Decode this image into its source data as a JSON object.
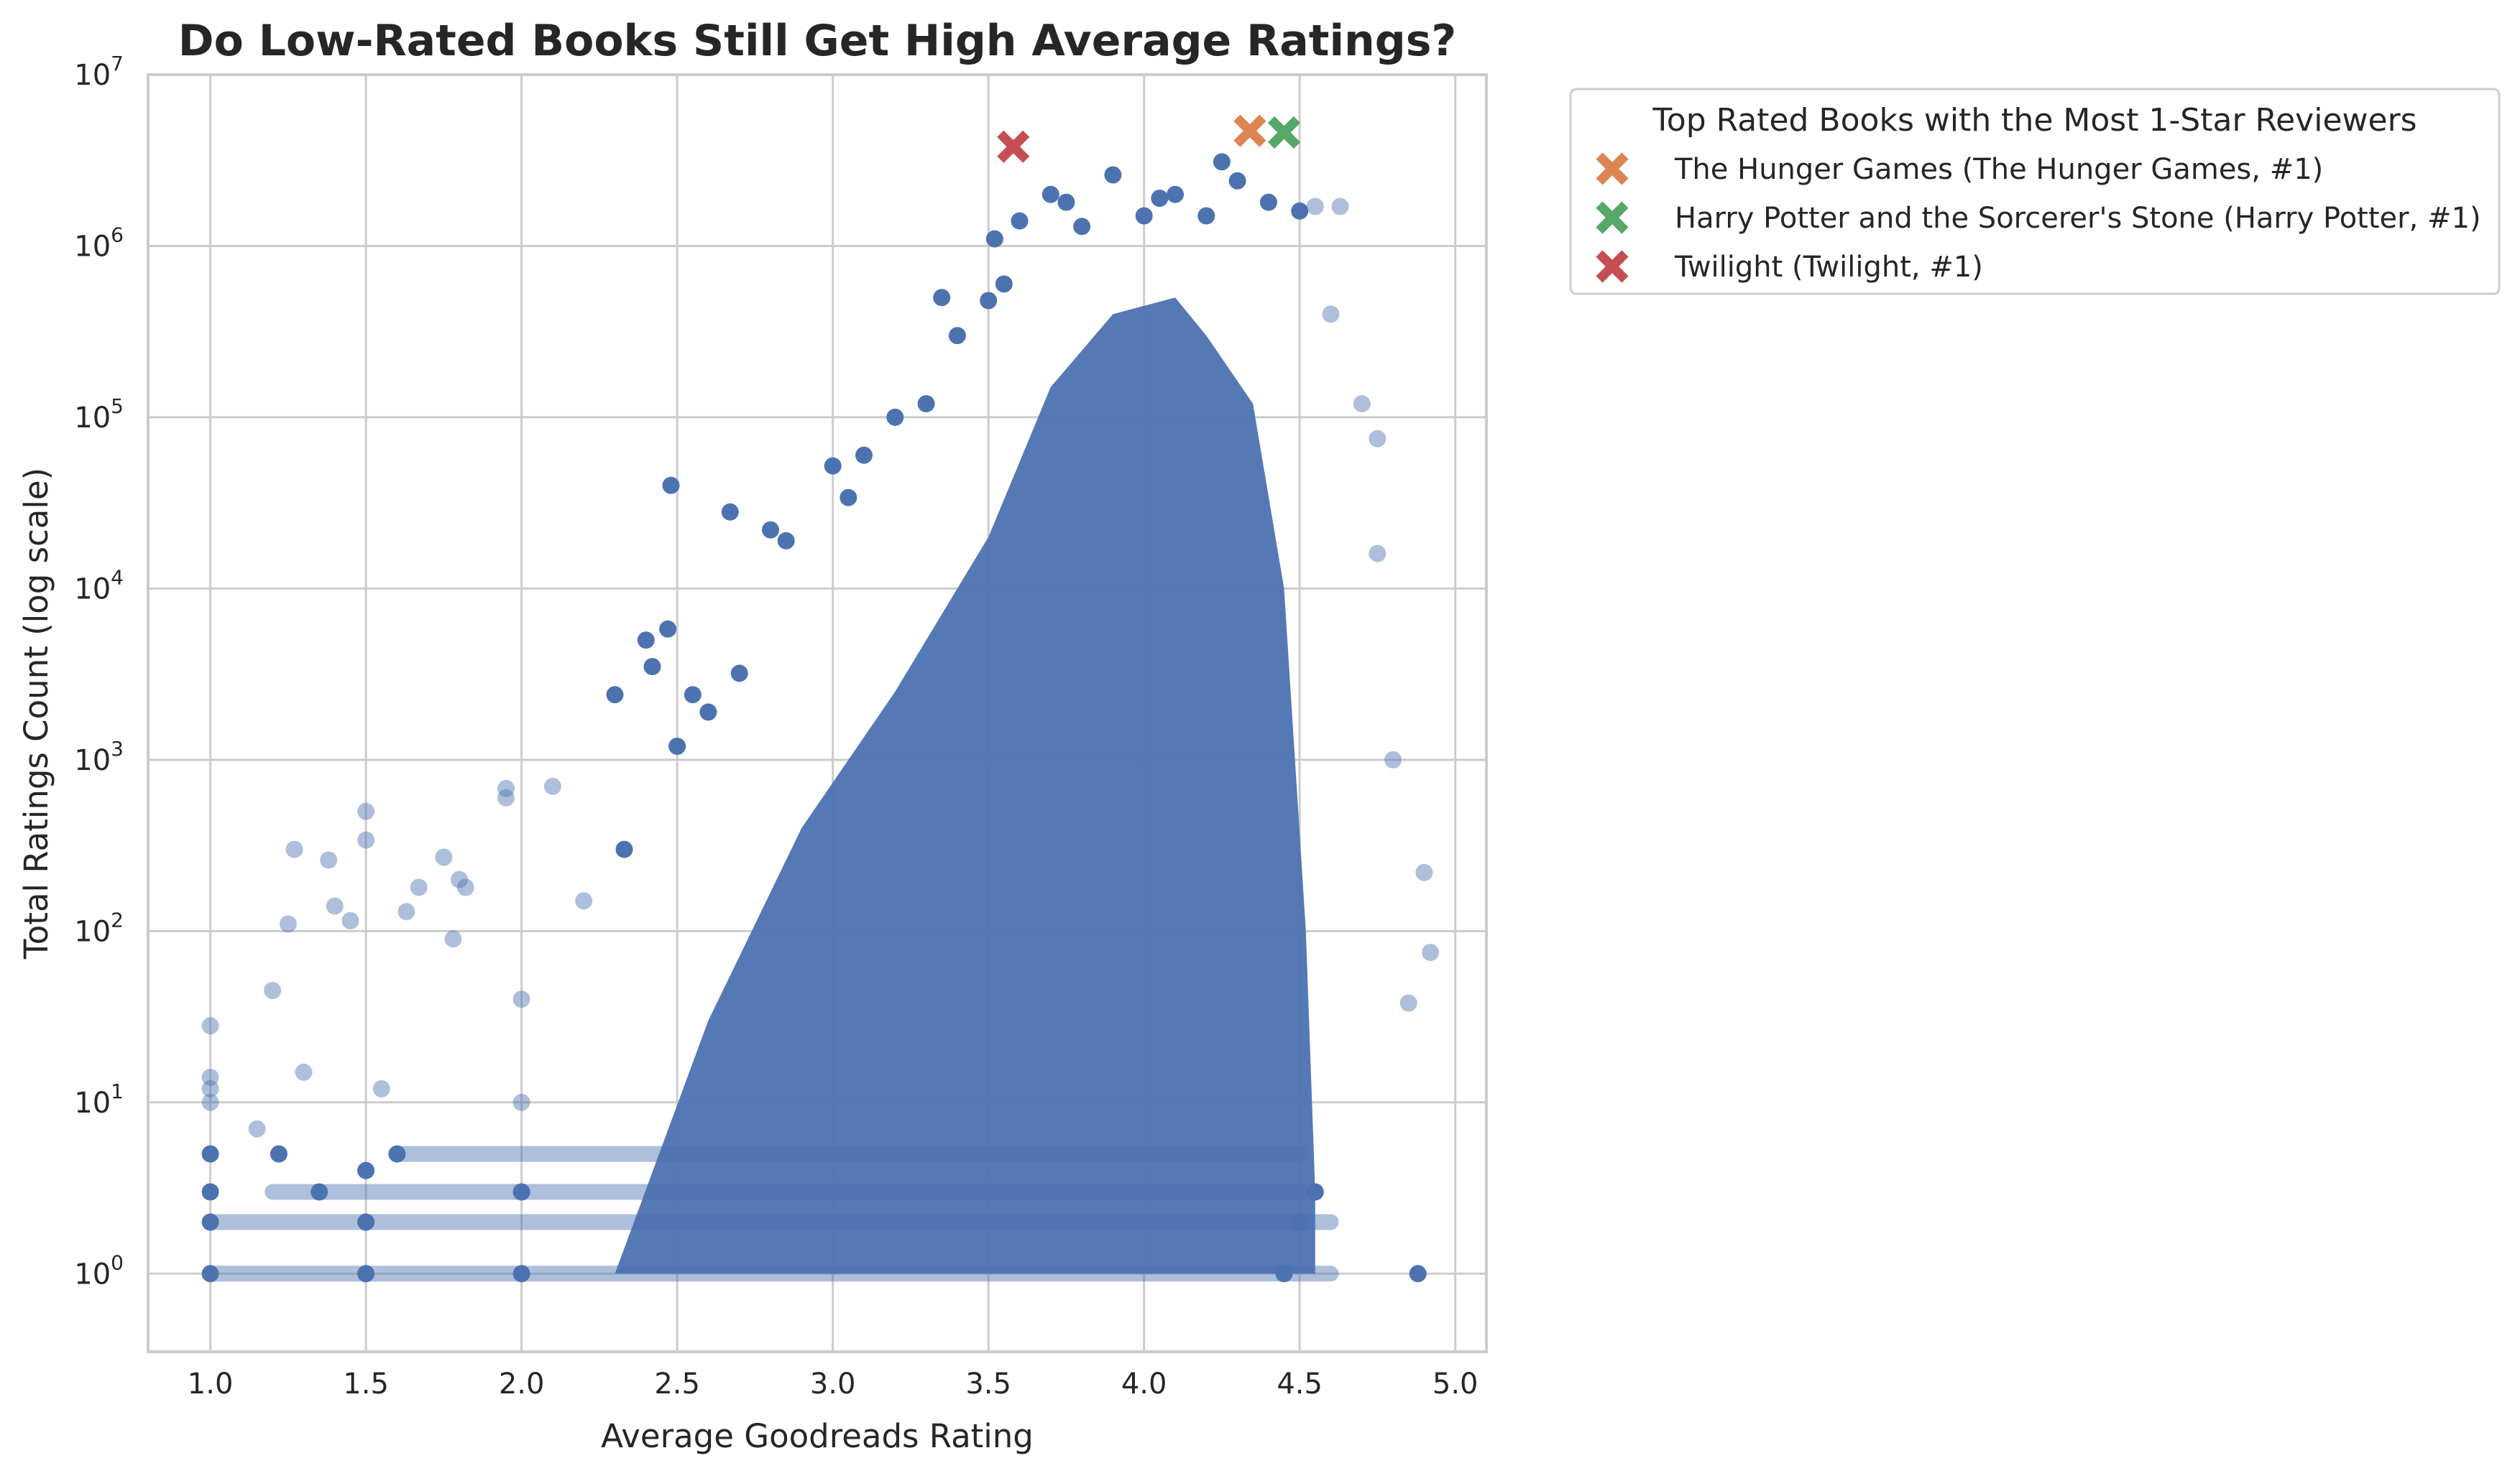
{
  "chart_data": {
    "type": "scatter",
    "title": "Do Low-Rated Books Still Get High Average Ratings?",
    "xlabel": "Average Goodreads Rating",
    "ylabel": "Total Ratings Count (log scale)",
    "xlim": [
      0.8,
      5.1
    ],
    "ylim": [
      0.35,
      10000000
    ],
    "yscale": "log",
    "xticks": [
      "1.0",
      "1.5",
      "2.0",
      "2.5",
      "3.0",
      "3.5",
      "4.0",
      "4.5",
      "5.0"
    ],
    "yticks": [
      {
        "base": "10",
        "exp": "0",
        "value": 1
      },
      {
        "base": "10",
        "exp": "1",
        "value": 10
      },
      {
        "base": "10",
        "exp": "2",
        "value": 100
      },
      {
        "base": "10",
        "exp": "3",
        "value": 1000
      },
      {
        "base": "10",
        "exp": "4",
        "value": 10000
      },
      {
        "base": "10",
        "exp": "5",
        "value": 100000
      },
      {
        "base": "10",
        "exp": "6",
        "value": 1000000
      },
      {
        "base": "10",
        "exp": "7",
        "value": 10000000
      }
    ],
    "grid": true,
    "legend_position": "outside-top-right",
    "colors": {
      "books": "#4c72b0",
      "hunger_games": "#dd8452",
      "harry_potter": "#55a868",
      "twilight": "#c44e52"
    },
    "series": [
      {
        "name": "",
        "marker": "circle",
        "color": "#4c72b0",
        "sample_points": [
          [
            1.0,
            28
          ],
          [
            1.0,
            14
          ],
          [
            1.0,
            12
          ],
          [
            1.0,
            10
          ],
          [
            1.0,
            5
          ],
          [
            1.0,
            3
          ],
          [
            1.0,
            2
          ],
          [
            1.0,
            1
          ],
          [
            1.15,
            7
          ],
          [
            1.2,
            45
          ],
          [
            1.22,
            5
          ],
          [
            1.25,
            110
          ],
          [
            1.27,
            300
          ],
          [
            1.3,
            15
          ],
          [
            1.35,
            3
          ],
          [
            1.38,
            260
          ],
          [
            1.4,
            140
          ],
          [
            1.45,
            115
          ],
          [
            1.5,
            500
          ],
          [
            1.5,
            340
          ],
          [
            1.5,
            4
          ],
          [
            1.5,
            2
          ],
          [
            1.5,
            1
          ],
          [
            1.55,
            12
          ],
          [
            1.6,
            5
          ],
          [
            1.63,
            130
          ],
          [
            1.67,
            180
          ],
          [
            1.75,
            270
          ],
          [
            1.78,
            90
          ],
          [
            1.8,
            200
          ],
          [
            1.82,
            180
          ],
          [
            1.95,
            680
          ],
          [
            1.95,
            600
          ],
          [
            2.0,
            40
          ],
          [
            2.0,
            10
          ],
          [
            2.0,
            3
          ],
          [
            2.0,
            1
          ],
          [
            2.1,
            700
          ],
          [
            2.2,
            150
          ],
          [
            2.3,
            2400
          ],
          [
            2.33,
            300
          ],
          [
            2.4,
            5000
          ],
          [
            2.42,
            3500
          ],
          [
            2.47,
            5800
          ],
          [
            2.48,
            40000
          ],
          [
            2.5,
            1200
          ],
          [
            2.55,
            2400
          ],
          [
            2.6,
            1900
          ],
          [
            2.67,
            28000
          ],
          [
            2.7,
            3200
          ],
          [
            2.8,
            22000
          ],
          [
            2.85,
            19000
          ],
          [
            3.0,
            52000
          ],
          [
            3.05,
            34000
          ],
          [
            3.1,
            60000
          ],
          [
            3.2,
            100000
          ],
          [
            3.3,
            120000
          ],
          [
            3.35,
            500000
          ],
          [
            3.4,
            300000
          ],
          [
            3.5,
            480000
          ],
          [
            3.52,
            1100000
          ],
          [
            3.55,
            600000
          ],
          [
            3.6,
            1400000
          ],
          [
            3.7,
            2000000
          ],
          [
            3.75,
            1800000
          ],
          [
            3.8,
            1300000
          ],
          [
            3.9,
            2600000
          ],
          [
            4.0,
            1500000
          ],
          [
            4.05,
            1900000
          ],
          [
            4.1,
            2000000
          ],
          [
            4.2,
            1500000
          ],
          [
            4.25,
            3100000
          ],
          [
            4.3,
            2400000
          ],
          [
            4.4,
            1800000
          ],
          [
            4.5,
            1600000
          ],
          [
            4.55,
            1700000
          ],
          [
            4.63,
            1700000
          ],
          [
            4.6,
            400000
          ],
          [
            4.7,
            120000
          ],
          [
            4.75,
            75000
          ],
          [
            4.75,
            16000
          ],
          [
            4.8,
            1000
          ],
          [
            4.85,
            38
          ],
          [
            4.9,
            220
          ],
          [
            4.92,
            75
          ],
          [
            4.88,
            1
          ],
          [
            4.5,
            2
          ],
          [
            4.45,
            1
          ],
          [
            4.55,
            3
          ]
        ],
        "dense_band": [
          [
            2.3,
            1
          ],
          [
            2.6,
            30
          ],
          [
            2.9,
            400
          ],
          [
            3.2,
            2500
          ],
          [
            3.5,
            20000
          ],
          [
            3.7,
            150000
          ],
          [
            3.9,
            400000
          ],
          [
            4.1,
            500000
          ],
          [
            4.2,
            300000
          ],
          [
            4.35,
            120000
          ],
          [
            4.45,
            10000
          ],
          [
            4.52,
            100
          ],
          [
            4.55,
            3
          ]
        ]
      },
      {
        "name": "The Hunger Games (The Hunger Games, #1)",
        "marker": "x",
        "color": "#dd8452",
        "points": [
          [
            4.34,
            4700000
          ]
        ]
      },
      {
        "name": "Harry Potter and the Sorcerer's Stone (Harry Potter, #1)",
        "marker": "x",
        "color": "#55a868",
        "points": [
          [
            4.45,
            4600000
          ]
        ]
      },
      {
        "name": "Twilight (Twilight, #1)",
        "marker": "x",
        "color": "#c44e52",
        "points": [
          [
            3.58,
            3800000
          ]
        ]
      }
    ],
    "legend": {
      "title": "Top Rated Books with the Most 1-Star Reviewers",
      "entries": [
        "The Hunger Games (The Hunger Games, #1)",
        "Harry Potter and the Sorcerer's Stone (Harry Potter, #1)",
        "Twilight (Twilight, #1)"
      ]
    }
  }
}
